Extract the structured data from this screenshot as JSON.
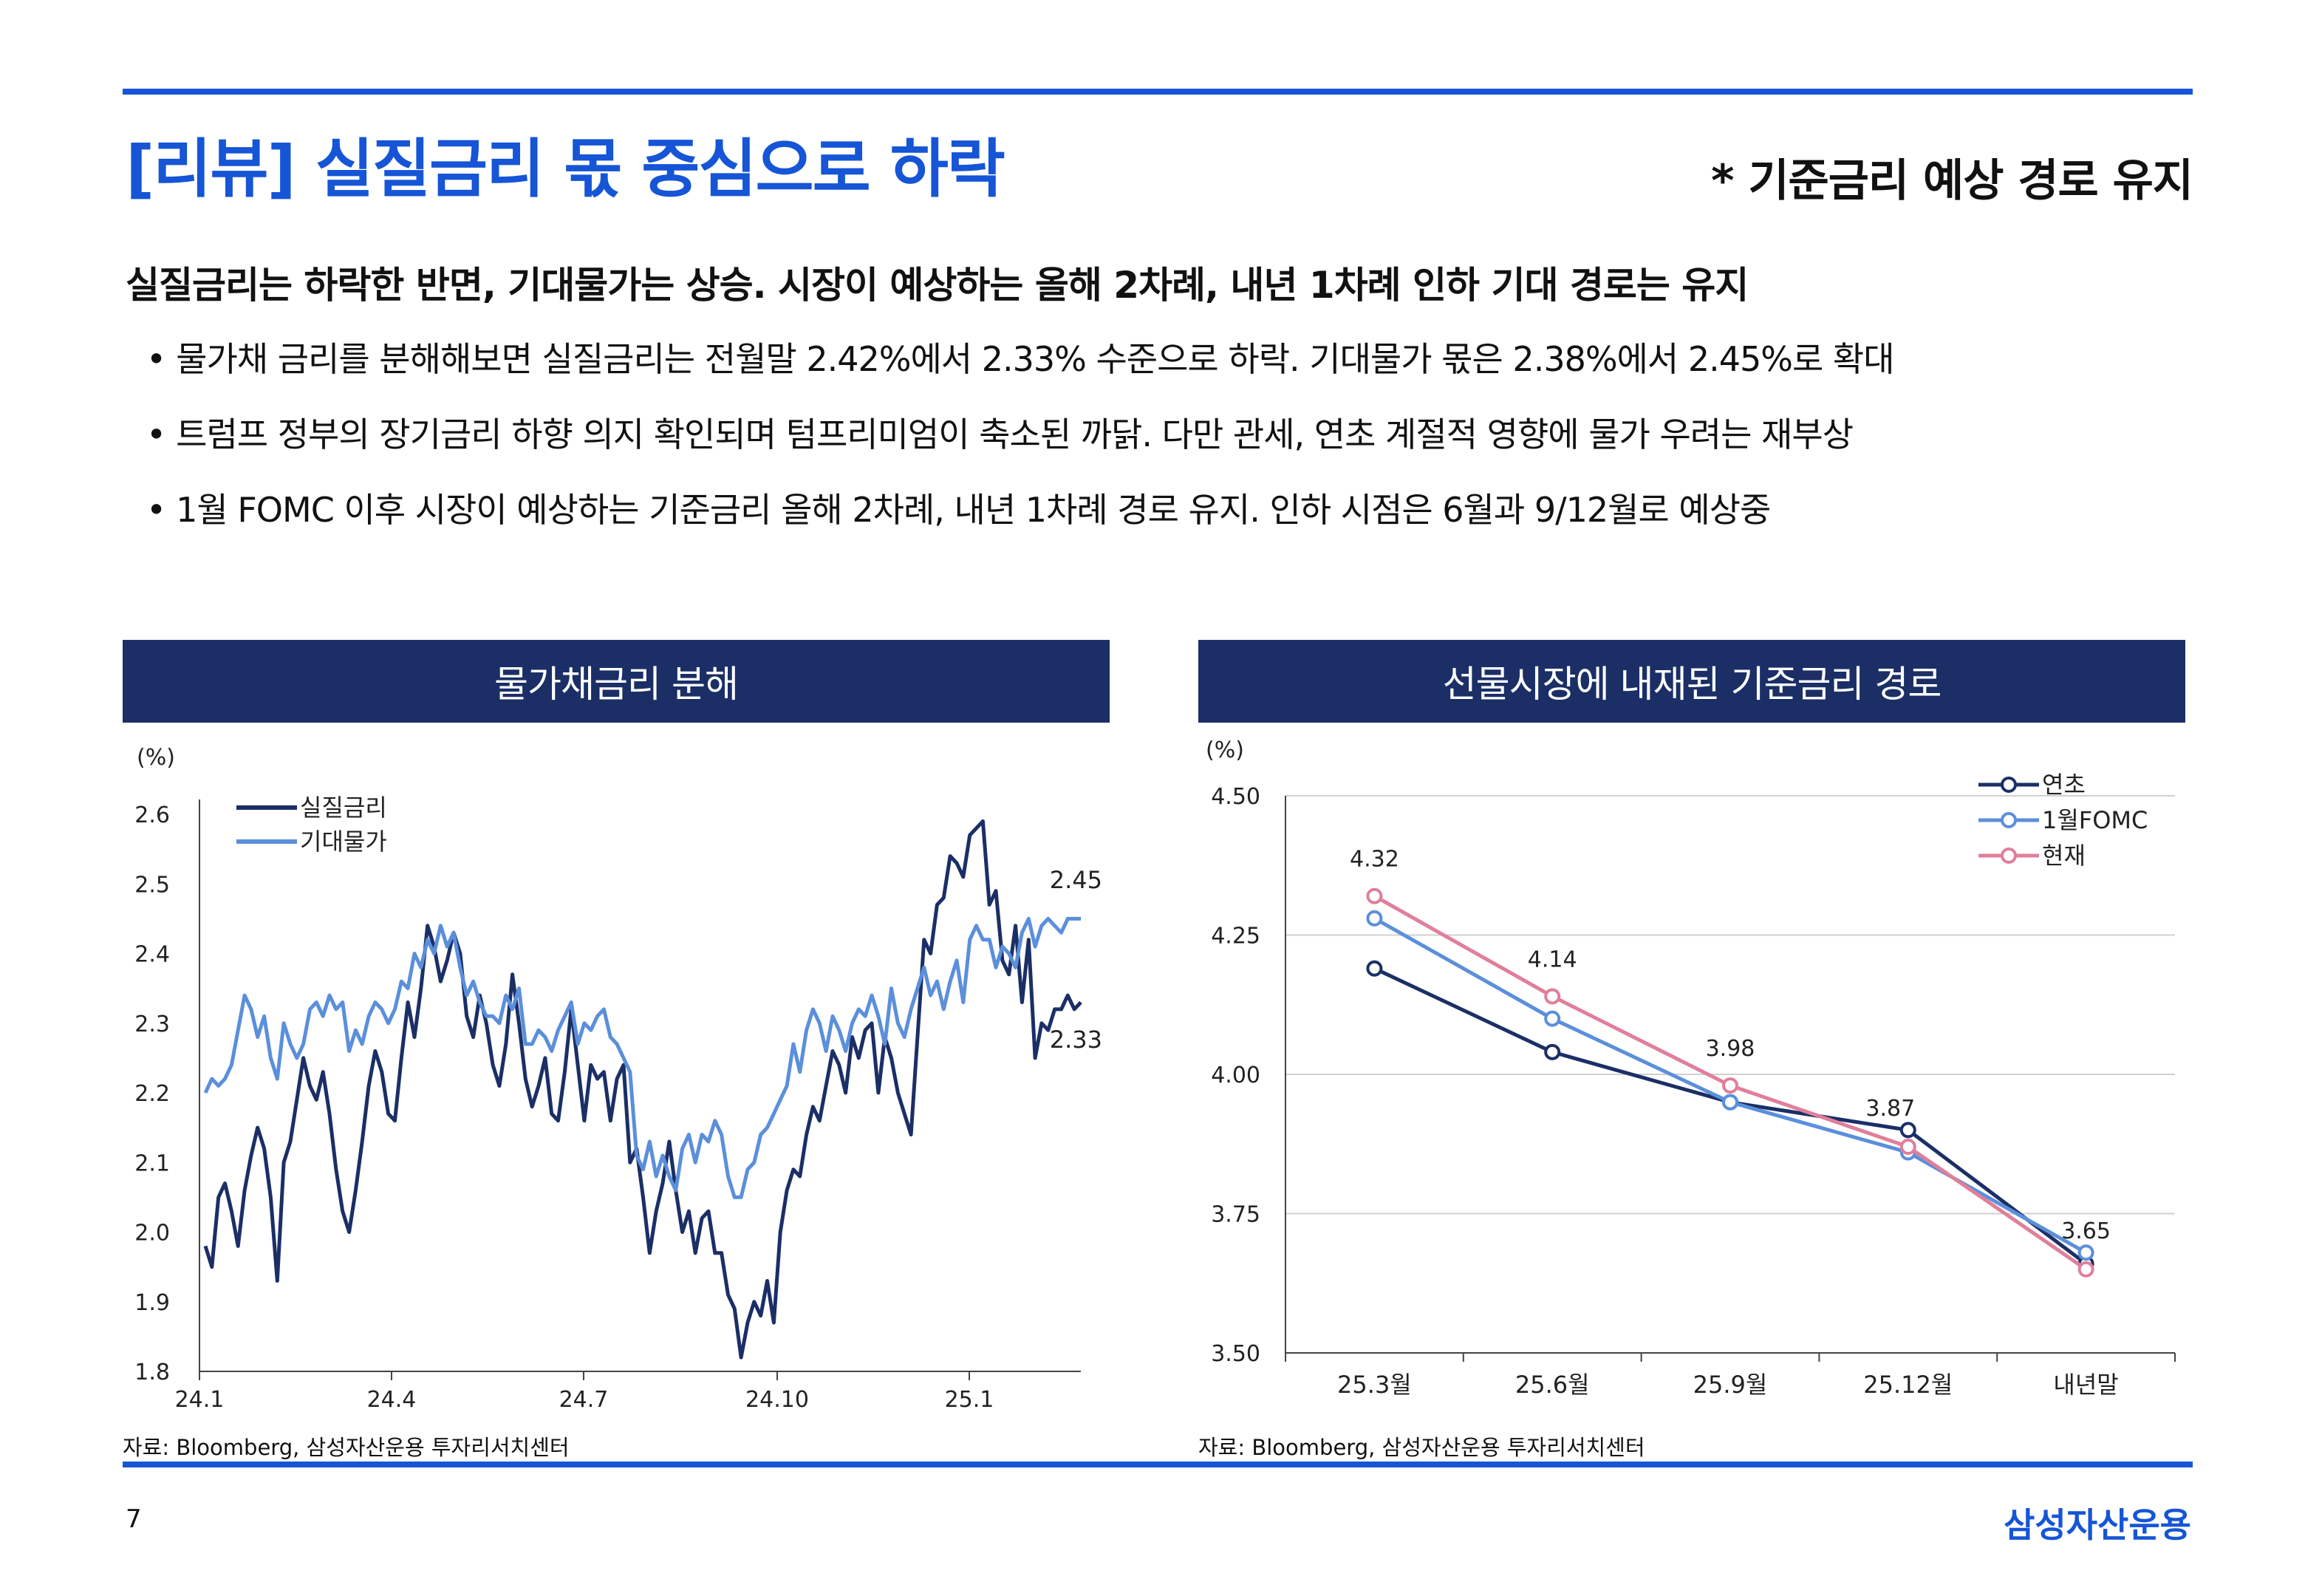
{
  "header": {
    "title": "[리뷰] 실질금리 몫 중심으로 하락",
    "subtitle": "* 기준금리 예상 경로 유지"
  },
  "summary": {
    "headline": "실질금리는 하락한 반면, 기대물가는 상승. 시장이 예상하는 올해 2차례, 내년 1차례 인하 기대 경로는 유지",
    "bullets": [
      "물가채 금리를 분해해보면 실질금리는 전월말 2.42%에서 2.33% 수준으로 하락. 기대물가 몫은 2.38%에서 2.45%로 확대",
      "트럼프 정부의 장기금리 하향 의지 확인되며 텀프리미엄이 축소된 까닭. 다만 관세, 연초 계절적 영향에 물가 우려는 재부상",
      "1월 FOMC 이후 시장이 예상하는 기준금리 올해 2차례, 내년 1차례 경로 유지. 인하 시점은 6월과 9/12월로 예상중"
    ],
    "bullet_marker": "•"
  },
  "footer": {
    "page_number": "7",
    "brand": "삼성자산운용"
  },
  "colors": {
    "accent": "#1555d6",
    "header_bg": "#1b2f66",
    "navy_series": "#1b2f66",
    "light_blue_series": "#5b8fdb",
    "pink_series": "#e07f9a"
  },
  "chart_data": [
    {
      "type": "line",
      "title": "물가채금리 분해",
      "ylabel": "(%)",
      "ylim": [
        1.8,
        2.6
      ],
      "yticks": [
        "2.6",
        "2.5",
        "2.4",
        "2.3",
        "2.2",
        "2.1",
        "2.0",
        "1.9",
        "1.8"
      ],
      "xticks": [
        "24.1",
        "24.4",
        "24.7",
        "24.10",
        "25.1"
      ],
      "legend": [
        "실질금리",
        "기대물가"
      ],
      "annotations": [
        "2.45",
        "2.33"
      ],
      "source": "자료: Bloomberg, 삼성자산운용 투자리서치센터",
      "series": [
        {
          "name": "실질금리",
          "color": "#1b2f66",
          "values": [
            1.98,
            1.95,
            2.05,
            2.07,
            2.03,
            1.98,
            2.06,
            2.11,
            2.15,
            2.12,
            2.05,
            1.93,
            2.1,
            2.13,
            2.19,
            2.25,
            2.21,
            2.19,
            2.23,
            2.17,
            2.09,
            2.03,
            2.0,
            2.06,
            2.13,
            2.21,
            2.26,
            2.23,
            2.17,
            2.16,
            2.25,
            2.33,
            2.28,
            2.35,
            2.44,
            2.41,
            2.36,
            2.39,
            2.43,
            2.4,
            2.31,
            2.28,
            2.34,
            2.3,
            2.24,
            2.21,
            2.27,
            2.37,
            2.3,
            2.22,
            2.18,
            2.21,
            2.25,
            2.17,
            2.16,
            2.23,
            2.32,
            2.24,
            2.16,
            2.24,
            2.22,
            2.23,
            2.16,
            2.22,
            2.24,
            2.1,
            2.12,
            2.05,
            1.97,
            2.03,
            2.07,
            2.13,
            2.06,
            2.0,
            2.03,
            1.97,
            2.02,
            2.03,
            1.97,
            1.97,
            1.91,
            1.89,
            1.82,
            1.87,
            1.9,
            1.88,
            1.93,
            1.87,
            2.0,
            2.06,
            2.09,
            2.08,
            2.14,
            2.18,
            2.16,
            2.21,
            2.26,
            2.24,
            2.2,
            2.28,
            2.25,
            2.29,
            2.3,
            2.2,
            2.28,
            2.25,
            2.2,
            2.17,
            2.14,
            2.28,
            2.42,
            2.4,
            2.47,
            2.48,
            2.54,
            2.53,
            2.51,
            2.57,
            2.58,
            2.59,
            2.47,
            2.49,
            2.39,
            2.37,
            2.44,
            2.33,
            2.42,
            2.25,
            2.3,
            2.29,
            2.32,
            2.32,
            2.34,
            2.32,
            2.33
          ]
        },
        {
          "name": "기대물가",
          "color": "#5b8fdb",
          "values": [
            2.2,
            2.22,
            2.21,
            2.22,
            2.24,
            2.29,
            2.34,
            2.32,
            2.28,
            2.31,
            2.25,
            2.22,
            2.3,
            2.27,
            2.25,
            2.27,
            2.32,
            2.33,
            2.31,
            2.34,
            2.32,
            2.33,
            2.26,
            2.29,
            2.27,
            2.31,
            2.33,
            2.32,
            2.3,
            2.32,
            2.36,
            2.35,
            2.4,
            2.38,
            2.42,
            2.4,
            2.44,
            2.41,
            2.43,
            2.38,
            2.34,
            2.36,
            2.33,
            2.31,
            2.31,
            2.3,
            2.34,
            2.32,
            2.35,
            2.27,
            2.27,
            2.29,
            2.28,
            2.26,
            2.29,
            2.31,
            2.33,
            2.27,
            2.3,
            2.29,
            2.31,
            2.32,
            2.28,
            2.27,
            2.25,
            2.23,
            2.11,
            2.09,
            2.13,
            2.08,
            2.11,
            2.08,
            2.06,
            2.12,
            2.14,
            2.1,
            2.14,
            2.13,
            2.16,
            2.14,
            2.08,
            2.05,
            2.05,
            2.09,
            2.1,
            2.14,
            2.15,
            2.17,
            2.19,
            2.21,
            2.27,
            2.23,
            2.29,
            2.32,
            2.3,
            2.26,
            2.31,
            2.29,
            2.26,
            2.3,
            2.32,
            2.31,
            2.34,
            2.31,
            2.27,
            2.35,
            2.3,
            2.28,
            2.32,
            2.35,
            2.38,
            2.34,
            2.36,
            2.32,
            2.36,
            2.39,
            2.33,
            2.42,
            2.44,
            2.42,
            2.42,
            2.38,
            2.41,
            2.4,
            2.38,
            2.43,
            2.45,
            2.41,
            2.44,
            2.45,
            2.44,
            2.43,
            2.45,
            2.45,
            2.45
          ]
        }
      ]
    },
    {
      "type": "line",
      "title": "선물시장에 내재된 기준금리 경로",
      "ylabel": "(%)",
      "ylim": [
        3.5,
        4.5
      ],
      "yticks": [
        "4.50",
        "4.25",
        "4.00",
        "3.75",
        "3.50"
      ],
      "categories": [
        "25.3월",
        "25.6월",
        "25.9월",
        "25.12월",
        "내년말"
      ],
      "legend": [
        "연초",
        "1월FOMC",
        "현재"
      ],
      "data_labels": [
        "4.32",
        "4.14",
        "3.98",
        "3.87",
        "3.65"
      ],
      "source": "자료: Bloomberg, 삼성자산운용 투자리서치센터",
      "series": [
        {
          "name": "연초",
          "color": "#1b2f66",
          "values": [
            4.19,
            4.04,
            3.95,
            3.9,
            3.66
          ]
        },
        {
          "name": "1월FOMC",
          "color": "#5b8fdb",
          "values": [
            4.28,
            4.1,
            3.95,
            3.86,
            3.68
          ]
        },
        {
          "name": "현재",
          "color": "#e07f9a",
          "values": [
            4.32,
            4.14,
            3.98,
            3.87,
            3.65
          ]
        }
      ]
    }
  ]
}
